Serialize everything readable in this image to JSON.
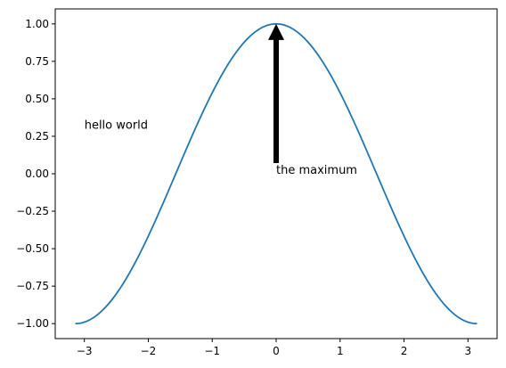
{
  "chart_data": {
    "type": "line",
    "title": "",
    "xlabel": "",
    "ylabel": "",
    "xlim": [
      -3.4557,
      3.4557
    ],
    "ylim": [
      -1.1,
      1.1
    ],
    "x_ticks": [
      -3,
      -2,
      -1,
      0,
      1,
      2,
      3
    ],
    "x_tick_labels": [
      "−3",
      "−2",
      "−1",
      "0",
      "1",
      "2",
      "3"
    ],
    "y_ticks": [
      -1.0,
      -0.75,
      -0.5,
      -0.25,
      0.0,
      0.25,
      0.5,
      0.75,
      1.0
    ],
    "y_tick_labels": [
      "−1.00",
      "−0.75",
      "−0.50",
      "−0.25",
      "0.00",
      "0.25",
      "0.50",
      "0.75",
      "1.00"
    ],
    "grid": false,
    "legend": "none",
    "series": [
      {
        "function": "cos(x)",
        "x_range": [
          -3.14159,
          3.14159
        ],
        "color": "#1f77b4"
      }
    ],
    "annotations": [
      {
        "text": "hello world",
        "x": -3.0,
        "y": 0.3
      },
      {
        "text": "the maximum",
        "x": 0.0,
        "y": 0.0,
        "arrow_to": [
          0.0,
          1.0
        ],
        "arrow_color": "#000000"
      }
    ]
  }
}
